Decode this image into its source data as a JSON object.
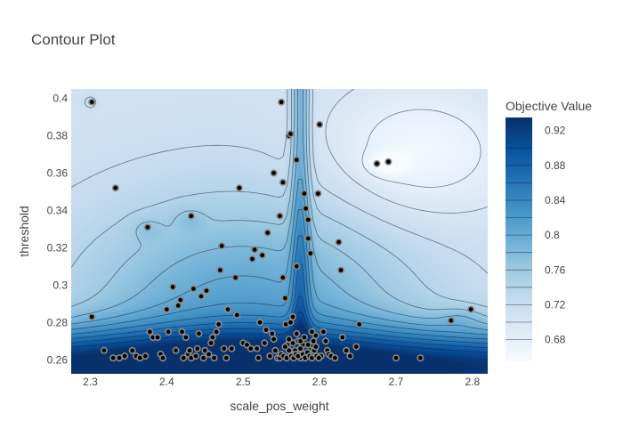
{
  "chart_data": {
    "type": "contour",
    "title": "Contour Plot",
    "xlabel": "scale_pos_weight",
    "ylabel": "threshold",
    "xlim": [
      2.275,
      2.82
    ],
    "ylim": [
      0.2525,
      0.405
    ],
    "x_ticks": [
      2.3,
      2.4,
      2.5,
      2.6,
      2.7,
      2.8
    ],
    "x_tick_labels": [
      "2.3",
      "2.4",
      "2.5",
      "2.6",
      "2.7",
      "2.8"
    ],
    "y_ticks": [
      0.26,
      0.28,
      0.3,
      0.32,
      0.34,
      0.36,
      0.38,
      0.4
    ],
    "y_tick_labels": [
      "0.26",
      "0.28",
      "0.3",
      "0.32",
      "0.34",
      "0.36",
      "0.38",
      "0.4"
    ],
    "colorbar": {
      "title": "Objective Value",
      "range": [
        0.655,
        0.935
      ],
      "ticks": [
        0.68,
        0.72,
        0.76,
        0.8,
        0.84,
        0.88,
        0.92
      ],
      "tick_labels": [
        "0.68",
        "0.72",
        "0.76",
        "0.8",
        "0.84",
        "0.88",
        "0.92"
      ],
      "colorscale": [
        "#f7fbff",
        "#deebf7",
        "#c6dbef",
        "#9ecae1",
        "#6baed6",
        "#4292c6",
        "#2171b5",
        "#08519c",
        "#08306b"
      ]
    },
    "trials": [
      [
        2.302,
        0.398
      ],
      [
        2.333,
        0.352
      ],
      [
        2.375,
        0.331
      ],
      [
        2.432,
        0.337
      ],
      [
        2.495,
        0.352
      ],
      [
        2.302,
        0.283
      ],
      [
        2.318,
        0.265
      ],
      [
        2.33,
        0.261
      ],
      [
        2.338,
        0.261
      ],
      [
        2.345,
        0.262
      ],
      [
        2.355,
        0.265
      ],
      [
        2.36,
        0.262
      ],
      [
        2.365,
        0.261
      ],
      [
        2.372,
        0.262
      ],
      [
        2.378,
        0.275
      ],
      [
        2.382,
        0.272
      ],
      [
        2.388,
        0.272
      ],
      [
        2.392,
        0.263
      ],
      [
        2.395,
        0.261
      ],
      [
        2.4,
        0.287
      ],
      [
        2.402,
        0.275
      ],
      [
        2.408,
        0.299
      ],
      [
        2.412,
        0.265
      ],
      [
        2.415,
        0.289
      ],
      [
        2.418,
        0.292
      ],
      [
        2.42,
        0.275
      ],
      [
        2.422,
        0.261
      ],
      [
        2.425,
        0.272
      ],
      [
        2.428,
        0.263
      ],
      [
        2.43,
        0.265
      ],
      [
        2.432,
        0.261
      ],
      [
        2.435,
        0.298
      ],
      [
        2.438,
        0.262
      ],
      [
        2.44,
        0.266
      ],
      [
        2.442,
        0.274
      ],
      [
        2.445,
        0.294
      ],
      [
        2.448,
        0.261
      ],
      [
        2.45,
        0.265
      ],
      [
        2.452,
        0.297
      ],
      [
        2.455,
        0.263
      ],
      [
        2.458,
        0.269
      ],
      [
        2.46,
        0.272
      ],
      [
        2.462,
        0.261
      ],
      [
        2.465,
        0.275
      ],
      [
        2.468,
        0.279
      ],
      [
        2.47,
        0.308
      ],
      [
        2.472,
        0.321
      ],
      [
        2.475,
        0.266
      ],
      [
        2.478,
        0.261
      ],
      [
        2.48,
        0.287
      ],
      [
        2.485,
        0.266
      ],
      [
        2.49,
        0.304
      ],
      [
        2.492,
        0.284
      ],
      [
        2.5,
        0.269
      ],
      [
        2.505,
        0.268
      ],
      [
        2.51,
        0.266
      ],
      [
        2.512,
        0.314
      ],
      [
        2.515,
        0.319
      ],
      [
        2.518,
        0.266
      ],
      [
        2.52,
        0.261
      ],
      [
        2.522,
        0.28
      ],
      [
        2.525,
        0.316
      ],
      [
        2.528,
        0.269
      ],
      [
        2.53,
        0.276
      ],
      [
        2.532,
        0.328
      ],
      [
        2.535,
        0.262
      ],
      [
        2.538,
        0.274
      ],
      [
        2.54,
        0.36
      ],
      [
        2.54,
        0.271
      ],
      [
        2.542,
        0.265
      ],
      [
        2.545,
        0.261
      ],
      [
        2.548,
        0.337
      ],
      [
        2.55,
        0.398
      ],
      [
        2.552,
        0.355
      ],
      [
        2.552,
        0.304
      ],
      [
        2.555,
        0.293
      ],
      [
        2.556,
        0.279
      ],
      [
        2.558,
        0.268
      ],
      [
        2.56,
        0.38
      ],
      [
        2.562,
        0.381
      ],
      [
        2.562,
        0.28
      ],
      [
        2.565,
        0.283
      ],
      [
        2.568,
        0.265
      ],
      [
        2.57,
        0.367
      ],
      [
        2.57,
        0.31
      ],
      [
        2.572,
        0.27
      ],
      [
        2.575,
        0.261
      ],
      [
        2.578,
        0.268
      ],
      [
        2.58,
        0.349
      ],
      [
        2.582,
        0.341
      ],
      [
        2.585,
        0.335
      ],
      [
        2.585,
        0.325
      ],
      [
        2.588,
        0.317
      ],
      [
        2.59,
        0.268
      ],
      [
        2.592,
        0.27
      ],
      [
        2.595,
        0.273
      ],
      [
        2.598,
        0.349
      ],
      [
        2.6,
        0.386
      ],
      [
        2.602,
        0.262
      ],
      [
        2.605,
        0.275
      ],
      [
        2.608,
        0.27
      ],
      [
        2.61,
        0.265
      ],
      [
        2.612,
        0.263
      ],
      [
        2.615,
        0.262
      ],
      [
        2.62,
        0.261
      ],
      [
        2.625,
        0.323
      ],
      [
        2.628,
        0.308
      ],
      [
        2.63,
        0.272
      ],
      [
        2.635,
        0.265
      ],
      [
        2.64,
        0.262
      ],
      [
        2.648,
        0.267
      ],
      [
        2.652,
        0.279
      ],
      [
        2.675,
        0.365
      ],
      [
        2.69,
        0.366
      ],
      [
        2.7,
        0.261
      ],
      [
        2.732,
        0.261
      ],
      [
        2.772,
        0.281
      ],
      [
        2.798,
        0.287
      ],
      [
        2.548,
        0.261
      ],
      [
        2.55,
        0.263
      ],
      [
        2.553,
        0.262
      ],
      [
        2.557,
        0.261
      ],
      [
        2.56,
        0.265
      ],
      [
        2.563,
        0.262
      ],
      [
        2.566,
        0.261
      ],
      [
        2.569,
        0.263
      ],
      [
        2.572,
        0.262
      ],
      [
        2.575,
        0.266
      ],
      [
        2.578,
        0.263
      ],
      [
        2.581,
        0.261
      ],
      [
        2.584,
        0.264
      ],
      [
        2.587,
        0.262
      ],
      [
        2.59,
        0.261
      ],
      [
        2.593,
        0.265
      ],
      [
        2.596,
        0.262
      ],
      [
        2.599,
        0.261
      ],
      [
        2.555,
        0.267
      ],
      [
        2.565,
        0.269
      ],
      [
        2.575,
        0.27
      ],
      [
        2.585,
        0.268
      ],
      [
        2.595,
        0.267
      ],
      [
        2.56,
        0.271
      ],
      [
        2.58,
        0.272
      ],
      [
        2.57,
        0.274
      ],
      [
        2.59,
        0.275
      ]
    ]
  }
}
